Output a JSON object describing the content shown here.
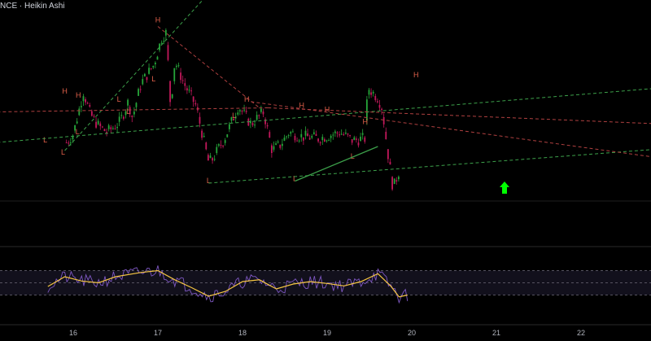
{
  "header": {
    "symbol_fragment": "NCE",
    "separator": "·",
    "chart_style": "Heikin Ashi"
  },
  "colors": {
    "background": "#000000",
    "candle_up": "#26a63a",
    "candle_down": "#c2185b",
    "pivot_label": "#e0604a",
    "trend_green": "#3ca04a",
    "trend_red": "#b04040",
    "rsi_line": "#7e57c2",
    "rsi_signal": "#f5c542",
    "arrow": "#00ff00",
    "axis_text": "#b2b5be"
  },
  "chart_data": {
    "type": "candlestick",
    "style": "Heikin Ashi",
    "x_ticks": [
      "16",
      "17",
      "18",
      "19",
      "20",
      "21",
      "22"
    ],
    "price_path": [
      [
        -0.08,
        0.38
      ],
      [
        0.0,
        0.42
      ],
      [
        0.12,
        0.63
      ],
      [
        0.2,
        0.52
      ],
      [
        0.3,
        0.46
      ],
      [
        0.4,
        0.43
      ],
      [
        0.55,
        0.48
      ],
      [
        0.65,
        0.58
      ],
      [
        0.7,
        0.5
      ],
      [
        0.8,
        0.67
      ],
      [
        0.95,
        0.76
      ],
      [
        1.05,
        0.9
      ],
      [
        1.1,
        0.92
      ],
      [
        1.15,
        0.55
      ],
      [
        1.2,
        0.78
      ],
      [
        1.32,
        0.66
      ],
      [
        1.45,
        0.56
      ],
      [
        1.6,
        0.28
      ],
      [
        1.65,
        0.3
      ],
      [
        1.8,
        0.41
      ],
      [
        1.95,
        0.56
      ],
      [
        2.1,
        0.47
      ],
      [
        2.25,
        0.53
      ],
      [
        2.35,
        0.34
      ],
      [
        2.45,
        0.37
      ],
      [
        2.55,
        0.43
      ],
      [
        2.7,
        0.41
      ],
      [
        2.9,
        0.4
      ],
      [
        3.15,
        0.43
      ],
      [
        3.3,
        0.39
      ],
      [
        3.45,
        0.4
      ],
      [
        3.48,
        0.65
      ],
      [
        3.6,
        0.6
      ],
      [
        3.65,
        0.55
      ],
      [
        3.72,
        0.32
      ],
      [
        3.78,
        0.15
      ],
      [
        3.8,
        0.18
      ],
      [
        3.85,
        0.24
      ]
    ],
    "pivots": [
      {
        "label": "H",
        "x": -0.1,
        "y": 0.62
      },
      {
        "label": "H",
        "x": 0.06,
        "y": 0.6
      },
      {
        "label": "L",
        "x": -0.33,
        "y": 0.38
      },
      {
        "label": "L",
        "x": -0.12,
        "y": 0.32
      },
      {
        "label": "H",
        "x": 1.0,
        "y": 0.97
      },
      {
        "label": "L",
        "x": 0.95,
        "y": 0.68
      },
      {
        "label": "L",
        "x": 0.65,
        "y": 0.52
      },
      {
        "label": "L",
        "x": 0.05,
        "y": 0.42
      },
      {
        "label": "L",
        "x": 0.54,
        "y": 0.58
      },
      {
        "label": "H",
        "x": 2.05,
        "y": 0.58
      },
      {
        "label": "L",
        "x": 1.6,
        "y": 0.18
      },
      {
        "label": "L",
        "x": 1.9,
        "y": 0.5
      },
      {
        "label": "H",
        "x": 2.7,
        "y": 0.55
      },
      {
        "label": "H",
        "x": 3.0,
        "y": 0.53
      },
      {
        "label": "L",
        "x": 3.3,
        "y": 0.3
      },
      {
        "label": "L",
        "x": 2.62,
        "y": 0.19
      },
      {
        "label": "H",
        "x": 3.45,
        "y": 0.47
      },
      {
        "label": "H",
        "x": 4.05,
        "y": 0.7
      }
    ],
    "rsi": {
      "bands": [
        70,
        50,
        30
      ],
      "signal_path": [
        [
          -0.3,
          44
        ],
        [
          -0.1,
          60
        ],
        [
          0.1,
          53
        ],
        [
          0.3,
          50
        ],
        [
          0.5,
          60
        ],
        [
          0.8,
          67
        ],
        [
          1.0,
          70
        ],
        [
          1.2,
          55
        ],
        [
          1.4,
          42
        ],
        [
          1.6,
          28
        ],
        [
          1.8,
          36
        ],
        [
          2.0,
          52
        ],
        [
          2.2,
          55
        ],
        [
          2.4,
          40
        ],
        [
          2.6,
          48
        ],
        [
          2.8,
          52
        ],
        [
          3.0,
          49
        ],
        [
          3.2,
          45
        ],
        [
          3.4,
          52
        ],
        [
          3.6,
          65
        ],
        [
          3.75,
          45
        ],
        [
          3.85,
          27
        ],
        [
          3.95,
          30
        ]
      ]
    }
  }
}
